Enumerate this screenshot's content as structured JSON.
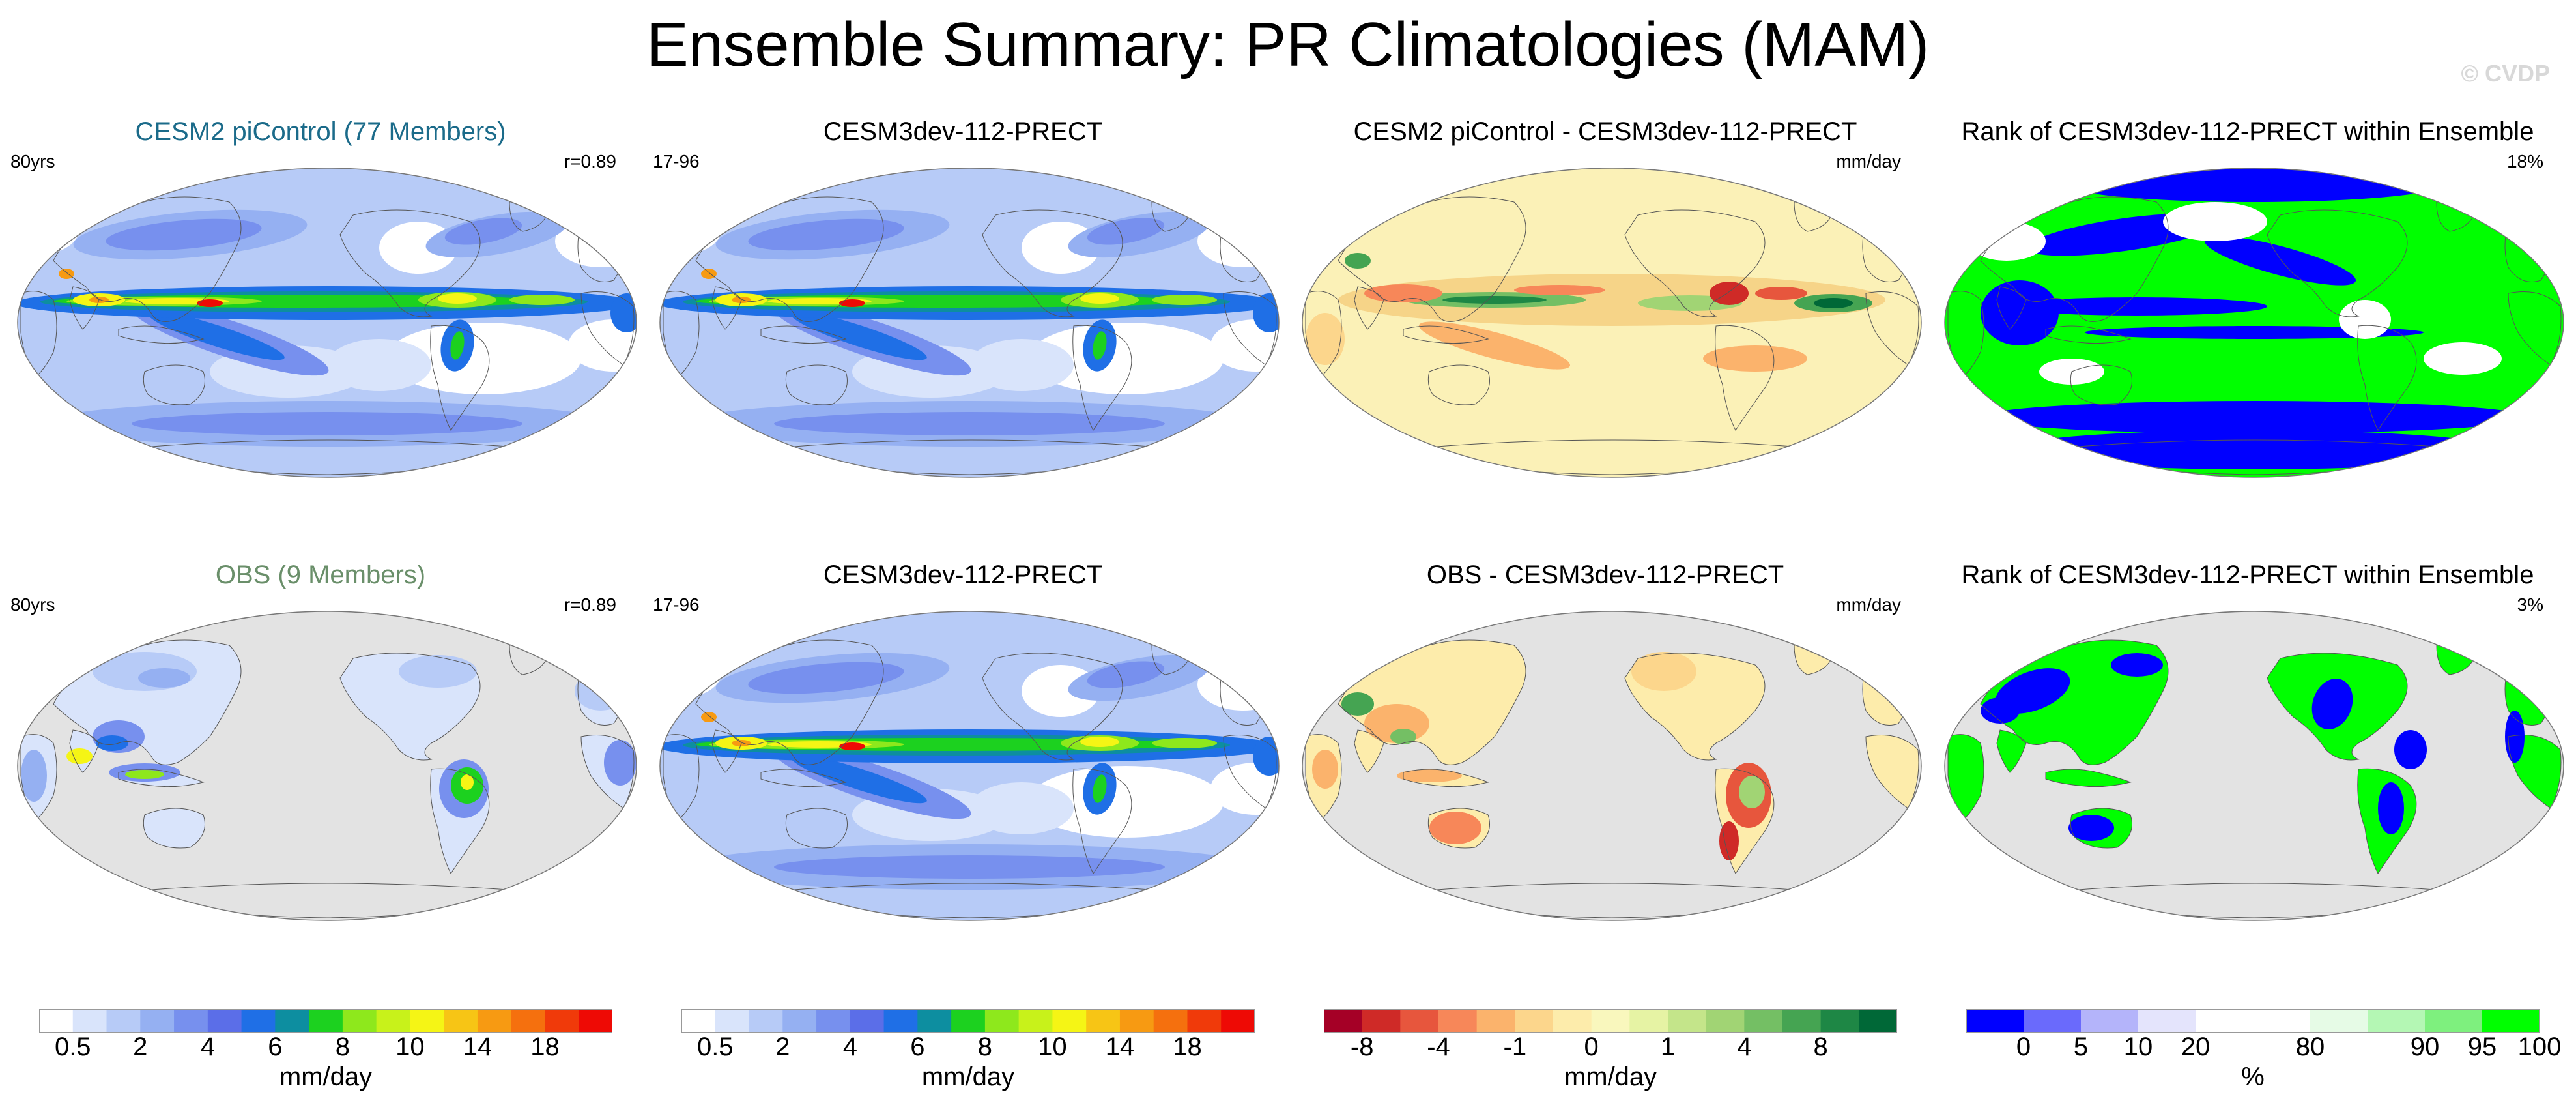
{
  "figure": {
    "title": "Ensemble Summary: PR Climatologies (MAM)",
    "watermark": "© CVDP"
  },
  "panels": {
    "p11": {
      "title": "CESM2 piControl (77 Members)",
      "left": "80yrs",
      "right": "r=0.89",
      "kind": "precip"
    },
    "p12": {
      "title": "CESM3dev-112-PRECT",
      "left": "17-96",
      "right": "",
      "kind": "precip"
    },
    "p13": {
      "title": "CESM2 piControl - CESM3dev-112-PRECT",
      "left": "",
      "right": "mm/day",
      "kind": "diff"
    },
    "p14": {
      "title": "Rank of CESM3dev-112-PRECT within Ensemble",
      "left": "",
      "right": "18%",
      "kind": "rank"
    },
    "p21": {
      "title": "OBS (9 Members)",
      "left": "80yrs",
      "right": "r=0.89",
      "kind": "obs"
    },
    "p22": {
      "title": "CESM3dev-112-PRECT",
      "left": "17-96",
      "right": "",
      "kind": "precip"
    },
    "p23": {
      "title": "OBS - CESM3dev-112-PRECT",
      "left": "",
      "right": "mm/day",
      "kind": "obsdiff"
    },
    "p24": {
      "title": "Rank of CESM3dev-112-PRECT within Ensemble",
      "left": "",
      "right": "3%",
      "kind": "obsrank"
    }
  },
  "colorbars": {
    "precip1": {
      "colors": [
        "#ffffff",
        "#d9e4fb",
        "#b7cbf7",
        "#95b0f2",
        "#7790ee",
        "#5b6ee8",
        "#1f6fe6",
        "#0d8ea0",
        "#1cd11f",
        "#8ee81c",
        "#c8f21a",
        "#f5f515",
        "#f7c515",
        "#f79a12",
        "#f5700e",
        "#f03a0a",
        "#ee0a05"
      ],
      "ticks": [
        "0.5",
        "2",
        "4",
        "6",
        "8",
        "10",
        "14",
        "18"
      ],
      "tick_at": [
        1,
        3,
        5,
        7,
        9,
        11,
        13,
        15
      ],
      "unit": "mm/day"
    },
    "precip2": {
      "colors": [
        "#ffffff",
        "#d9e4fb",
        "#b7cbf7",
        "#95b0f2",
        "#7790ee",
        "#5b6ee8",
        "#1f6fe6",
        "#0d8ea0",
        "#1cd11f",
        "#8ee81c",
        "#c8f21a",
        "#f5f515",
        "#f7c515",
        "#f79a12",
        "#f5700e",
        "#f03a0a",
        "#ee0a05"
      ],
      "ticks": [
        "0.5",
        "2",
        "4",
        "6",
        "8",
        "10",
        "14",
        "18"
      ],
      "tick_at": [
        1,
        3,
        5,
        7,
        9,
        11,
        13,
        15
      ],
      "unit": "mm/day"
    },
    "diff": {
      "colors": [
        "#a50026",
        "#cf2a27",
        "#e7563d",
        "#f78759",
        "#fbb36c",
        "#fcd68c",
        "#fdecab",
        "#f9f7bd",
        "#e6f3a4",
        "#c4e58a",
        "#a1d474",
        "#74bf64",
        "#45a452",
        "#1e8745",
        "#006837"
      ],
      "ticks": [
        "-8",
        "-4",
        "-1",
        "0",
        "1",
        "4",
        "8"
      ],
      "tick_at": [
        1,
        3,
        5,
        7,
        9,
        11,
        13
      ],
      "unit": "mm/day"
    },
    "rank": {
      "colors": [
        "#0000ff",
        "#6a6afc",
        "#b4b4fa",
        "#e4e4fc",
        "#ffffff",
        "#ffffff",
        "#e6fbe6",
        "#b4f7b4",
        "#7ef07e",
        "#00ff00"
      ],
      "ticks": [
        "0",
        "5",
        "10",
        "20",
        "80",
        "90",
        "95",
        "100"
      ],
      "tick_at": [
        1,
        2,
        3,
        4,
        6,
        8,
        9,
        10
      ],
      "unit": "%"
    }
  }
}
